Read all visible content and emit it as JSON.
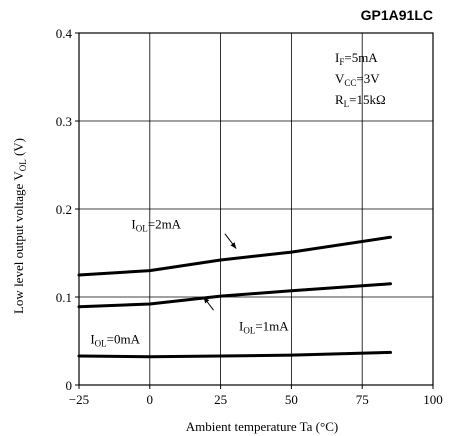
{
  "chart_data": {
    "type": "line",
    "title": "GP1A91LC",
    "xlabel": "Ambient temperature Ta (°C)",
    "ylabel": {
      "main": "Low level output voltage V",
      "sub": "OL",
      "unit": " (V)"
    },
    "xlim": [
      -25,
      100
    ],
    "ylim": [
      0,
      0.4
    ],
    "xticks": [
      -25,
      0,
      25,
      50,
      75,
      100
    ],
    "xtick_labels": [
      "−25",
      "0",
      "25",
      "50",
      "75",
      "100"
    ],
    "yticks": [
      0,
      0.1,
      0.2,
      0.3,
      0.4
    ],
    "ytick_labels": [
      "0",
      "0.1",
      "0.2",
      "0.3",
      "0.4"
    ],
    "grid": true,
    "conditions": [
      {
        "main": "I",
        "sub": "F",
        "rest": "=5mA"
      },
      {
        "main": "V",
        "sub": "CC",
        "rest": "=3V"
      },
      {
        "main": "R",
        "sub": "L",
        "rest": "=15kΩ"
      }
    ],
    "series": [
      {
        "label": {
          "main": "I",
          "sub": "OL",
          "rest": "=2mA"
        },
        "x": [
          -25,
          0,
          25,
          50,
          85
        ],
        "y": [
          0.125,
          0.13,
          0.142,
          0.151,
          0.168
        ],
        "label_anchor": [
          -6.5,
          0.178
        ],
        "leader": [
          [
            26.5,
            0.172
          ],
          [
            30.5,
            0.155
          ]
        ]
      },
      {
        "label": {
          "main": "I",
          "sub": "OL",
          "rest": "=1mA"
        },
        "x": [
          -25,
          0,
          25,
          50,
          85
        ],
        "y": [
          0.089,
          0.092,
          0.101,
          0.107,
          0.115
        ],
        "label_anchor": [
          31.5,
          0.062
        ],
        "leader": [
          [
            22.5,
            0.085
          ],
          [
            19,
            0.1
          ]
        ]
      },
      {
        "label": {
          "main": "I",
          "sub": "OL",
          "rest": "=0mA"
        },
        "x": [
          -25,
          0,
          25,
          50,
          85
        ],
        "y": [
          0.033,
          0.032,
          0.033,
          0.034,
          0.037
        ],
        "label_anchor": [
          -21,
          0.047
        ],
        "leader": []
      }
    ]
  }
}
